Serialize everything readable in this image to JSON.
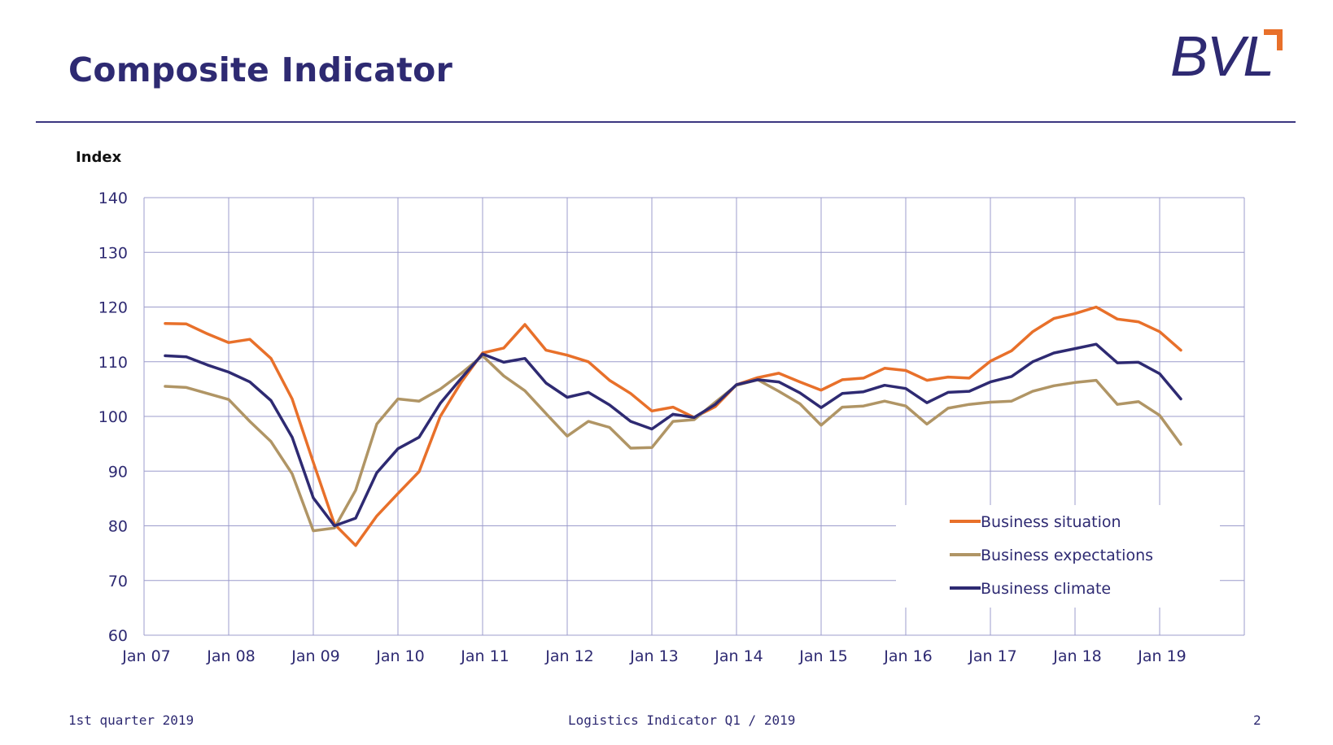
{
  "slide": {
    "title": "Composite Indicator",
    "logo_text": "BVL",
    "footer_left": "1st quarter 2019",
    "footer_center": "Logistics Indicator Q1 / 2019",
    "page_number": "2"
  },
  "colors": {
    "title": "#2e2a72",
    "rule": "#3b3680",
    "grid": "#9c9ccc",
    "logo_accent": "#e8702a"
  },
  "chart_data": {
    "type": "line",
    "ylabel": "Index",
    "ylim": [
      60,
      140
    ],
    "yticks": [
      60,
      70,
      80,
      90,
      100,
      110,
      120,
      130,
      140
    ],
    "xlim": [
      2007,
      2020
    ],
    "xticks": [
      2007,
      2008,
      2009,
      2010,
      2011,
      2012,
      2013,
      2014,
      2015,
      2016,
      2017,
      2018,
      2019
    ],
    "xtick_labels": [
      "Jan 07",
      "Jan 08",
      "Jan 09",
      "Jan 10",
      "Jan 11",
      "Jan 12",
      "Jan 13",
      "Jan 14",
      "Jan 15",
      "Jan 16",
      "Jan 17",
      "Jan 18",
      "Jan 19"
    ],
    "grid": true,
    "legend_position": "bottom-right",
    "x": [
      2007.25,
      2007.5,
      2007.75,
      2008.0,
      2008.25,
      2008.5,
      2008.75,
      2009.0,
      2009.25,
      2009.5,
      2009.75,
      2010.0,
      2010.25,
      2010.5,
      2010.75,
      2011.0,
      2011.25,
      2011.5,
      2011.75,
      2012.0,
      2012.25,
      2012.5,
      2012.75,
      2013.0,
      2013.25,
      2013.5,
      2013.75,
      2014.0,
      2014.25,
      2014.5,
      2014.75,
      2015.0,
      2015.25,
      2015.5,
      2015.75,
      2016.0,
      2016.25,
      2016.5,
      2016.75,
      2017.0,
      2017.25,
      2017.5,
      2017.75,
      2018.0,
      2018.25,
      2018.5,
      2018.75,
      2019.0,
      2019.25
    ],
    "series": [
      {
        "name": "Business situation",
        "color": "#e8702a",
        "values": [
          117.0,
          116.9,
          115.1,
          113.5,
          114.1,
          110.6,
          103.2,
          91.6,
          80.3,
          76.4,
          81.8,
          85.9,
          89.9,
          100.0,
          106.3,
          111.6,
          112.5,
          116.8,
          112.1,
          111.2,
          110.0,
          106.6,
          104.2,
          101.0,
          101.7,
          99.8,
          101.8,
          105.8,
          107.1,
          107.9,
          106.3,
          104.8,
          106.7,
          107.0,
          108.8,
          108.4,
          106.6,
          107.2,
          107.0,
          110.1,
          112.0,
          115.5,
          117.9,
          118.8,
          120.0,
          117.8,
          117.3,
          115.5,
          112.1
        ]
      },
      {
        "name": "Business expectations",
        "color": "#b09565",
        "values": [
          105.5,
          105.3,
          104.2,
          103.1,
          99.1,
          95.4,
          89.5,
          79.1,
          79.6,
          86.5,
          98.6,
          103.2,
          102.8,
          105.0,
          107.9,
          111.1,
          107.4,
          104.7,
          100.5,
          96.4,
          99.1,
          98.0,
          94.2,
          94.3,
          99.1,
          99.4,
          102.6,
          105.7,
          106.7,
          104.6,
          102.3,
          98.4,
          101.7,
          101.9,
          102.8,
          101.9,
          98.6,
          101.5,
          102.2,
          102.6,
          102.8,
          104.6,
          105.6,
          106.2,
          106.6,
          102.2,
          102.7,
          100.2,
          94.9
        ]
      },
      {
        "name": "Business climate",
        "color": "#2e2a72",
        "values": [
          111.1,
          110.9,
          109.4,
          108.1,
          106.3,
          102.9,
          96.2,
          85.1,
          80.0,
          81.4,
          89.7,
          94.1,
          96.2,
          102.4,
          107.0,
          111.4,
          109.9,
          110.6,
          106.1,
          103.5,
          104.4,
          102.1,
          99.1,
          97.7,
          100.4,
          99.8,
          102.2,
          105.8,
          106.7,
          106.3,
          104.3,
          101.6,
          104.2,
          104.5,
          105.7,
          105.1,
          102.5,
          104.4,
          104.6,
          106.3,
          107.3,
          110.0,
          111.6,
          112.4,
          113.2,
          109.8,
          109.9,
          107.8,
          103.2
        ]
      }
    ]
  }
}
